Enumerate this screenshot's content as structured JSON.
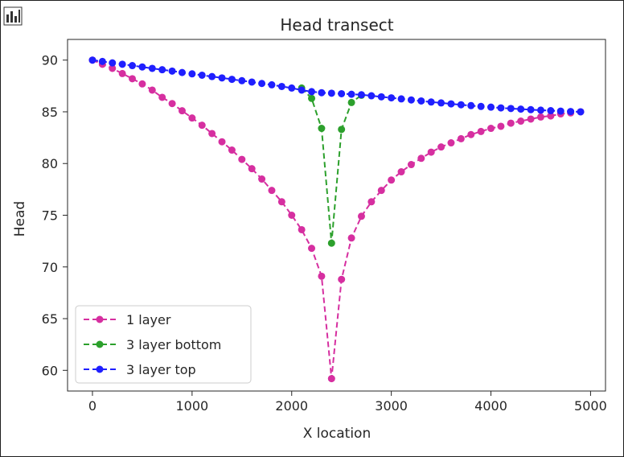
{
  "toolbar": {
    "icon": "bar-chart-icon"
  },
  "chart_data": {
    "type": "line",
    "title": "Head transect",
    "xlabel": "X location",
    "ylabel": "Head",
    "xlim": [
      -250,
      5150
    ],
    "ylim": [
      58,
      92
    ],
    "xticks": [
      0,
      1000,
      2000,
      3000,
      4000,
      5000
    ],
    "yticks": [
      60,
      65,
      70,
      75,
      80,
      85,
      90
    ],
    "legend_position": "lower-left",
    "grid": false,
    "series": [
      {
        "name": "1 layer",
        "color": "#d62fa0",
        "style": "dashed-with-dots",
        "x": [
          0,
          100,
          200,
          300,
          400,
          500,
          600,
          700,
          800,
          900,
          1000,
          1100,
          1200,
          1300,
          1400,
          1500,
          1600,
          1700,
          1800,
          1900,
          2000,
          2100,
          2200,
          2300,
          2400,
          2500,
          2600,
          2700,
          2800,
          2900,
          3000,
          3100,
          3200,
          3300,
          3400,
          3500,
          3600,
          3700,
          3800,
          3900,
          4000,
          4100,
          4200,
          4300,
          4400,
          4500,
          4600,
          4700,
          4800,
          4900
        ],
        "values": [
          90.0,
          89.6,
          89.2,
          88.7,
          88.2,
          87.7,
          87.1,
          86.4,
          85.8,
          85.1,
          84.4,
          83.7,
          82.9,
          82.1,
          81.3,
          80.4,
          79.5,
          78.5,
          77.4,
          76.3,
          75.0,
          73.6,
          71.8,
          69.1,
          59.2,
          68.8,
          72.8,
          74.9,
          76.3,
          77.4,
          78.4,
          79.2,
          79.9,
          80.5,
          81.1,
          81.6,
          82.0,
          82.4,
          82.8,
          83.1,
          83.4,
          83.6,
          83.9,
          84.1,
          84.3,
          84.5,
          84.6,
          84.8,
          84.9,
          85.0
        ]
      },
      {
        "name": "3 layer bottom",
        "color": "#2ca02c",
        "style": "dashed-with-dots",
        "x": [
          2100,
          2200,
          2300,
          2400,
          2500,
          2600,
          2700
        ],
        "values": [
          87.3,
          86.3,
          83.4,
          72.3,
          83.3,
          85.9,
          86.6
        ]
      },
      {
        "name": "3 layer top",
        "color": "#1f1fff",
        "style": "dashed-with-dots",
        "x": [
          0,
          100,
          200,
          300,
          400,
          500,
          600,
          700,
          800,
          900,
          1000,
          1100,
          1200,
          1300,
          1400,
          1500,
          1600,
          1700,
          1800,
          1900,
          2000,
          2100,
          2200,
          2300,
          2400,
          2500,
          2600,
          2700,
          2800,
          2900,
          3000,
          3100,
          3200,
          3300,
          3400,
          3500,
          3600,
          3700,
          3800,
          3900,
          4000,
          4100,
          4200,
          4300,
          4400,
          4500,
          4600,
          4700,
          4800,
          4900
        ],
        "values": [
          90.0,
          89.87,
          89.73,
          89.6,
          89.47,
          89.34,
          89.2,
          89.07,
          88.94,
          88.8,
          88.67,
          88.54,
          88.41,
          88.28,
          88.14,
          88.01,
          87.88,
          87.74,
          87.61,
          87.45,
          87.3,
          87.1,
          86.95,
          86.85,
          86.8,
          86.75,
          86.7,
          86.65,
          86.55,
          86.45,
          86.35,
          86.25,
          86.15,
          86.05,
          85.95,
          85.86,
          85.77,
          85.68,
          85.6,
          85.52,
          85.45,
          85.38,
          85.32,
          85.26,
          85.21,
          85.16,
          85.11,
          85.07,
          85.03,
          85.0
        ]
      }
    ]
  }
}
